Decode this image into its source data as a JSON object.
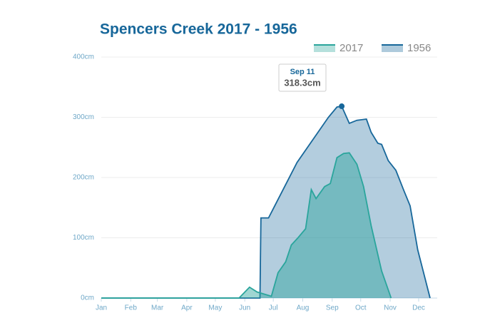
{
  "chart_data": {
    "type": "area",
    "title": "Spencers Creek 2017 - 1956",
    "xlim": [
      1,
      347
    ],
    "xticks": [
      {
        "value": 1,
        "label": "Jan"
      },
      {
        "value": 32,
        "label": "Feb"
      },
      {
        "value": 60,
        "label": "Mar"
      },
      {
        "value": 91,
        "label": "Apr"
      },
      {
        "value": 121,
        "label": "May"
      },
      {
        "value": 152,
        "label": "Jun"
      },
      {
        "value": 182,
        "label": "Jul"
      },
      {
        "value": 213,
        "label": "Aug"
      },
      {
        "value": 244,
        "label": "Sep"
      },
      {
        "value": 274,
        "label": "Oct"
      },
      {
        "value": 305,
        "label": "Nov"
      },
      {
        "value": 335,
        "label": "Dec"
      }
    ],
    "ylim": [
      0,
      400
    ],
    "yticks": [
      {
        "value": 0,
        "label": "0cm"
      },
      {
        "value": 100,
        "label": "100cm"
      },
      {
        "value": 200,
        "label": "200cm"
      },
      {
        "value": 300,
        "label": "300cm"
      },
      {
        "value": 400,
        "label": "400cm"
      }
    ],
    "grid": true,
    "legend": "top-right",
    "series": [
      {
        "name": "2017",
        "color": "#2aa59c",
        "x": [
          1,
          146,
          157,
          165,
          180,
          187,
          195,
          201,
          208,
          216,
          222,
          227,
          236,
          242,
          249,
          256,
          262,
          270,
          277,
          285,
          296,
          306
        ],
        "values": [
          0,
          0,
          18,
          10,
          3,
          42,
          60,
          88,
          100,
          115,
          180,
          165,
          185,
          190,
          233,
          240,
          241,
          222,
          185,
          120,
          45,
          0
        ]
      },
      {
        "name": "1956",
        "color": "#17679a",
        "x": [
          1,
          168,
          169,
          177,
          207,
          240,
          249,
          254,
          262,
          270,
          280,
          285,
          292,
          296,
          303,
          311,
          319,
          326,
          334,
          347
        ],
        "values": [
          0,
          0,
          133,
          133,
          225,
          300,
          317,
          318.3,
          290,
          295,
          297,
          275,
          257,
          255,
          228,
          212,
          180,
          153,
          80,
          0
        ]
      }
    ],
    "tooltip": {
      "x": 254,
      "y": 318.3,
      "title": "Sep 11",
      "text": "318.3cm"
    }
  }
}
